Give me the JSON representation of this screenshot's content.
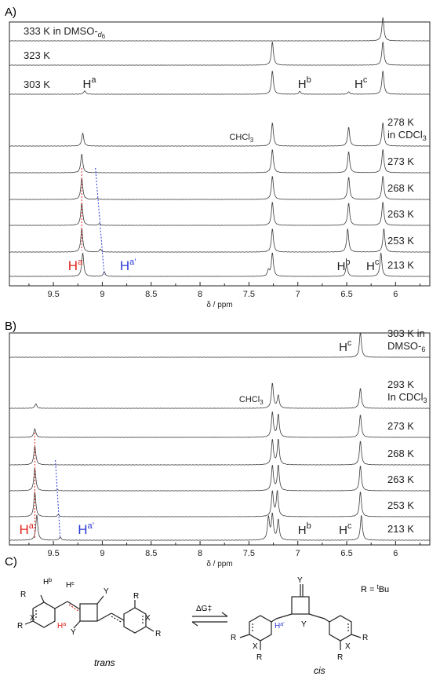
{
  "panel_labels": {
    "a": "A)",
    "b": "B)",
    "c": "C)"
  },
  "colors": {
    "trace": "#3a3a3a",
    "red": "#e0241b",
    "blue": "#2b3bd6",
    "axis": "#222222"
  },
  "chart_data": [
    {
      "type": "line",
      "title": "",
      "xlabel": "δ / ppm",
      "xlim": [
        9.95,
        5.65
      ],
      "x_ticks": [
        "9.5",
        "9",
        "8.5",
        "8",
        "7.5",
        "7",
        "6.5",
        "6"
      ],
      "x_tick_values": [
        9.5,
        9.0,
        8.5,
        8.0,
        7.5,
        7.0,
        6.5,
        6.0
      ],
      "series": [
        {
          "name": "333 K in DMSO-d6",
          "label": "333 K in DMSO-",
          "sub": "6",
          "label_side": "left",
          "peaks": [
            [
              6.13,
              1.0
            ]
          ]
        },
        {
          "name": "323 K",
          "label": "323 K",
          "label_side": "left",
          "peaks": [
            [
              7.26,
              1.0
            ],
            [
              6.13,
              1.0
            ]
          ]
        },
        {
          "name": "303 K",
          "label": "303 K",
          "label_side": "left",
          "peaks": [
            [
              9.18,
              0.15
            ],
            [
              7.26,
              1.0
            ],
            [
              6.98,
              0.12
            ],
            [
              6.48,
              0.1
            ],
            [
              6.13,
              1.0
            ]
          ]
        },
        {
          "name": "278 K in CDCl3",
          "label": "278 K",
          "label2": "in CDCl",
          "sub": "3",
          "label_side": "right",
          "peaks": [
            [
              9.2,
              0.55
            ],
            [
              7.26,
              1.0
            ],
            [
              6.48,
              0.8
            ],
            [
              6.13,
              1.0
            ]
          ]
        },
        {
          "name": "273 K",
          "label": "273 K",
          "label_side": "right",
          "peaks": [
            [
              9.21,
              0.8
            ],
            [
              7.26,
              1.0
            ],
            [
              6.48,
              0.9
            ],
            [
              6.13,
              1.0
            ]
          ]
        },
        {
          "name": "268 K",
          "label": "268 K",
          "label_side": "right",
          "peaks": [
            [
              9.21,
              0.9
            ],
            [
              9.05,
              0.05
            ],
            [
              7.26,
              1.0
            ],
            [
              6.48,
              0.95
            ],
            [
              6.13,
              1.0
            ]
          ]
        },
        {
          "name": "263 K",
          "label": "263 K",
          "label_side": "right",
          "peaks": [
            [
              9.21,
              0.95
            ],
            [
              9.03,
              0.08
            ],
            [
              7.26,
              1.0
            ],
            [
              6.48,
              0.95
            ],
            [
              6.13,
              1.0
            ]
          ]
        },
        {
          "name": "253 K",
          "label": "253 K",
          "label_side": "right",
          "peaks": [
            [
              9.21,
              1.0
            ],
            [
              9.02,
              0.12
            ],
            [
              7.26,
              1.0
            ],
            [
              6.49,
              1.0
            ],
            [
              6.12,
              1.0
            ]
          ]
        },
        {
          "name": "213 K",
          "label": "213 K",
          "label_side": "right",
          "peaks": [
            [
              9.2,
              1.0
            ],
            [
              8.98,
              0.2
            ],
            [
              7.3,
              0.25
            ],
            [
              7.26,
              1.0
            ],
            [
              6.5,
              0.5
            ],
            [
              6.15,
              1.0
            ]
          ]
        }
      ],
      "annotations": [
        {
          "text": "H",
          "sup": "a",
          "x": 9.2,
          "trace": 2,
          "color": "axis"
        },
        {
          "text": "H",
          "sup": "b",
          "x": 7.0,
          "trace": 2,
          "color": "axis"
        },
        {
          "text": "H",
          "sup": "c",
          "x": 6.42,
          "trace": 2,
          "color": "axis"
        },
        {
          "text": "CHCl",
          "sub": "3",
          "x": 7.7,
          "trace": 3,
          "color": "axis"
        },
        {
          "text": "H",
          "sup": "a",
          "x": 9.35,
          "trace": 8,
          "color": "red"
        },
        {
          "text": "H",
          "sup": "a’",
          "x": 8.82,
          "trace": 8,
          "color": "blue"
        },
        {
          "text": "H",
          "sup": "b",
          "x": 6.6,
          "trace": 8,
          "color": "axis"
        },
        {
          "text": "H",
          "sup": "c",
          "x": 6.3,
          "trace": 8,
          "color": "axis"
        }
      ],
      "guides": [
        {
          "color": "red",
          "from": [
            9.21,
            4
          ],
          "to": [
            9.21,
            7
          ]
        },
        {
          "color": "blue",
          "from": [
            9.07,
            4
          ],
          "to": [
            8.98,
            8
          ]
        }
      ]
    },
    {
      "type": "line",
      "title": "",
      "xlabel": "δ / ppm",
      "xlim": [
        9.95,
        5.65
      ],
      "x_ticks": [
        "9.5",
        "9",
        "8.5",
        "8",
        "7.5",
        "7",
        "6.5",
        "6"
      ],
      "x_tick_values": [
        9.5,
        9.0,
        8.5,
        8.0,
        7.5,
        7.0,
        6.5,
        6.0
      ],
      "series": [
        {
          "name": "303 K in DMSO-d6",
          "label": "303 K in",
          "label2": "DMSO-",
          "sub": "6",
          "label_side": "right",
          "peaks": [
            [
              6.36,
              1.0
            ]
          ]
        },
        {
          "name": "293 K In CDCl3",
          "label": "293 K",
          "label2": "In CDCl",
          "sub": "3",
          "label_side": "right",
          "peaks": [
            [
              9.68,
              0.18
            ],
            [
              7.26,
              1.0
            ],
            [
              7.2,
              0.5
            ],
            [
              6.36,
              0.8
            ]
          ]
        },
        {
          "name": "273 K",
          "label": "273 K",
          "label_side": "right",
          "peaks": [
            [
              9.69,
              0.35
            ],
            [
              7.26,
              1.0
            ],
            [
              7.2,
              0.9
            ],
            [
              6.36,
              0.9
            ]
          ]
        },
        {
          "name": "268 K",
          "label": "268 K",
          "label_side": "right",
          "peaks": [
            [
              9.69,
              0.75
            ],
            [
              7.26,
              1.0
            ],
            [
              7.2,
              1.0
            ],
            [
              6.36,
              0.95
            ]
          ]
        },
        {
          "name": "263 K",
          "label": "263 K",
          "label_side": "right",
          "peaks": [
            [
              9.69,
              0.9
            ],
            [
              9.46,
              0.04
            ],
            [
              7.26,
              1.0
            ],
            [
              7.2,
              1.0
            ],
            [
              6.36,
              1.0
            ]
          ]
        },
        {
          "name": "253 K",
          "label": "253 K",
          "label_side": "right",
          "peaks": [
            [
              9.69,
              1.0
            ],
            [
              9.45,
              0.08
            ],
            [
              7.26,
              1.0
            ],
            [
              7.21,
              1.0
            ],
            [
              6.36,
              1.0
            ]
          ]
        },
        {
          "name": "213 K",
          "label": "213 K",
          "label_side": "right",
          "peaks": [
            [
              9.67,
              1.0
            ],
            [
              9.43,
              0.12
            ],
            [
              7.3,
              0.9
            ],
            [
              7.26,
              1.0
            ],
            [
              7.2,
              0.8
            ],
            [
              6.35,
              1.0
            ]
          ]
        }
      ],
      "annotations": [
        {
          "text": "H",
          "sup": "c",
          "x": 6.58,
          "trace": 0,
          "color": "axis"
        },
        {
          "text": "CHCl",
          "sub": "3",
          "x": 7.6,
          "trace": 1,
          "color": "axis"
        },
        {
          "text": "H",
          "sup": "a",
          "x": 9.85,
          "trace": 6,
          "color": "red"
        },
        {
          "text": "H",
          "sup": "a’",
          "x": 9.25,
          "trace": 6,
          "color": "blue"
        },
        {
          "text": "H",
          "sup": "b",
          "x": 7.0,
          "trace": 6,
          "color": "axis"
        },
        {
          "text": "H",
          "sup": "c",
          "x": 6.58,
          "trace": 6,
          "color": "axis"
        }
      ],
      "guides": [
        {
          "color": "red",
          "from": [
            9.69,
            2
          ],
          "to": [
            9.69,
            6
          ]
        },
        {
          "color": "blue",
          "from": [
            9.48,
            3
          ],
          "to": [
            9.43,
            6
          ]
        }
      ]
    }
  ],
  "scheme": {
    "trans_label": "trans",
    "cis_label": "cis",
    "delta_g": "ΔG‡",
    "r_label": "R = ",
    "r_sup": "t",
    "r_rest": "Bu",
    "atoms": {
      "R": "R",
      "X": "X",
      "Y": "Y",
      "Hb": "H",
      "Hb_sup": "b",
      "Hc": "H",
      "Hc_sup": "c",
      "Ha": "H",
      "Ha_sup": "a",
      "Ha2": "H",
      "Ha2_sup": "a’"
    }
  }
}
